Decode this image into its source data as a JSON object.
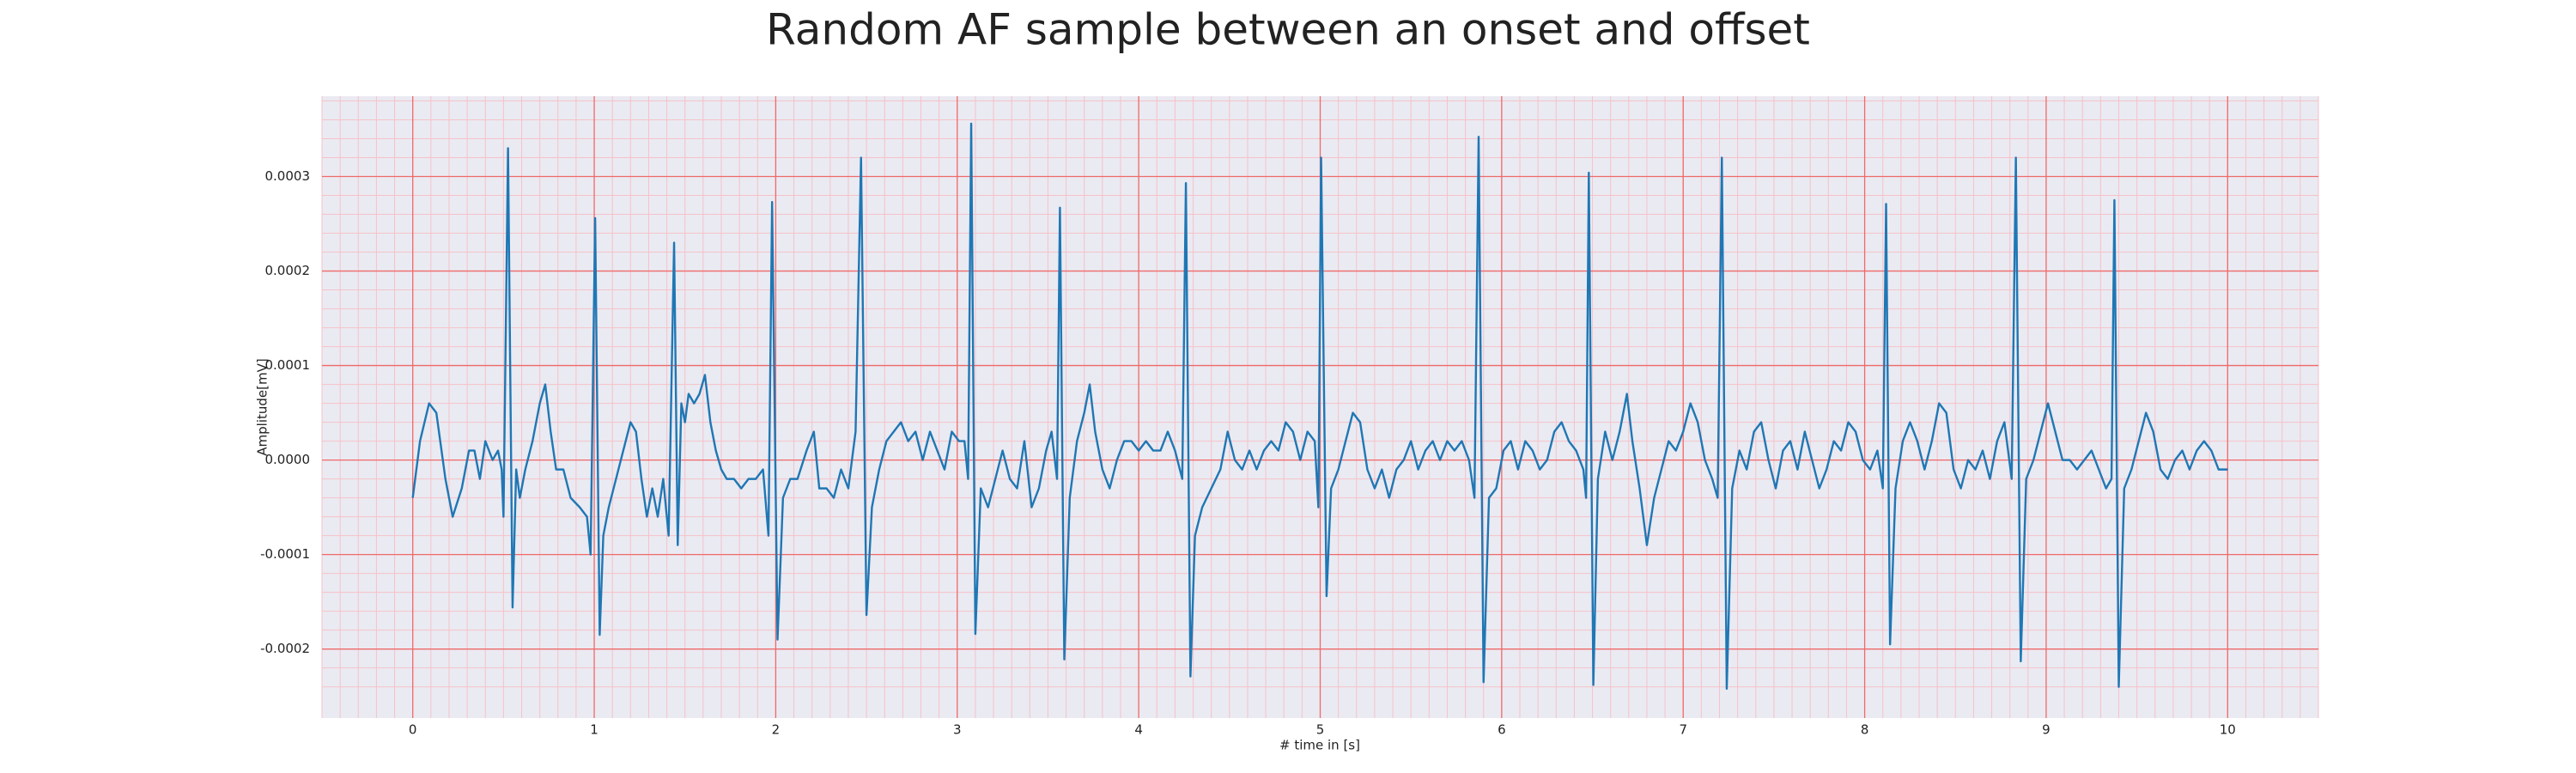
{
  "chart_data": {
    "type": "line",
    "title": "Random AF sample between an onset and offset",
    "xlabel": "# time in [s]",
    "ylabel": "Amplitude[mV]",
    "color": "#1f77b4",
    "grid": true,
    "minor_grid": true,
    "xlim": [
      -0.5,
      10.5
    ],
    "xticks": [
      0,
      1,
      2,
      3,
      4,
      5,
      6,
      7,
      8,
      9,
      10
    ],
    "ylim": [
      -0.000273,
      0.000385
    ],
    "yticks": [
      -0.0002,
      -0.0001,
      {
        "value": 0,
        "label": "0.0000"
      },
      0.0001,
      0.0002,
      0.0003
    ],
    "x": [
      0.0,
      0.04,
      0.09,
      0.13,
      0.18,
      0.22,
      0.27,
      0.31,
      0.34,
      0.37,
      0.4,
      0.44,
      0.47,
      0.49,
      0.5,
      0.525,
      0.55,
      0.57,
      0.59,
      0.62,
      0.66,
      0.7,
      0.73,
      0.76,
      0.79,
      0.83,
      0.87,
      0.92,
      0.96,
      0.98,
      1.005,
      1.03,
      1.05,
      1.08,
      1.12,
      1.16,
      1.2,
      1.23,
      1.26,
      1.29,
      1.32,
      1.35,
      1.38,
      1.41,
      1.44,
      1.46,
      1.48,
      1.5,
      1.52,
      1.55,
      1.58,
      1.61,
      1.64,
      1.67,
      1.7,
      1.73,
      1.77,
      1.81,
      1.85,
      1.89,
      1.93,
      1.96,
      1.98,
      2.01,
      2.04,
      2.08,
      2.12,
      2.17,
      2.21,
      2.24,
      2.28,
      2.32,
      2.36,
      2.4,
      2.44,
      2.47,
      2.5,
      2.53,
      2.57,
      2.61,
      2.65,
      2.69,
      2.73,
      2.77,
      2.81,
      2.85,
      2.89,
      2.93,
      2.97,
      3.01,
      3.04,
      3.06,
      3.077,
      3.1,
      3.13,
      3.17,
      3.21,
      3.25,
      3.29,
      3.33,
      3.37,
      3.41,
      3.45,
      3.49,
      3.52,
      3.55,
      3.566,
      3.59,
      3.62,
      3.66,
      3.7,
      3.73,
      3.76,
      3.8,
      3.84,
      3.88,
      3.92,
      3.96,
      4.0,
      4.04,
      4.08,
      4.12,
      4.16,
      4.2,
      4.24,
      4.26,
      4.285,
      4.31,
      4.35,
      4.4,
      4.45,
      4.49,
      4.53,
      4.57,
      4.61,
      4.65,
      4.69,
      4.73,
      4.77,
      4.81,
      4.85,
      4.89,
      4.93,
      4.97,
      4.99,
      5.005,
      5.035,
      5.06,
      5.1,
      5.14,
      5.18,
      5.22,
      5.26,
      5.3,
      5.34,
      5.38,
      5.42,
      5.46,
      5.5,
      5.54,
      5.58,
      5.62,
      5.66,
      5.7,
      5.74,
      5.78,
      5.82,
      5.85,
      5.873,
      5.9,
      5.93,
      5.97,
      6.01,
      6.05,
      6.09,
      6.13,
      6.17,
      6.21,
      6.25,
      6.29,
      6.33,
      6.37,
      6.41,
      6.45,
      6.465,
      6.48,
      6.505,
      6.53,
      6.57,
      6.61,
      6.65,
      6.69,
      6.72,
      6.76,
      6.8,
      6.84,
      6.88,
      6.92,
      6.96,
      7.0,
      7.04,
      7.08,
      7.12,
      7.16,
      7.19,
      7.213,
      7.24,
      7.27,
      7.31,
      7.35,
      7.39,
      7.43,
      7.47,
      7.51,
      7.55,
      7.59,
      7.63,
      7.67,
      7.71,
      7.75,
      7.79,
      7.83,
      7.87,
      7.91,
      7.95,
      7.99,
      8.03,
      8.07,
      8.1,
      8.118,
      8.14,
      8.17,
      8.21,
      8.25,
      8.29,
      8.33,
      8.37,
      8.41,
      8.45,
      8.49,
      8.53,
      8.57,
      8.61,
      8.65,
      8.69,
      8.73,
      8.77,
      8.81,
      8.833,
      8.86,
      8.89,
      8.93,
      8.97,
      9.01,
      9.05,
      9.09,
      9.13,
      9.17,
      9.21,
      9.25,
      9.29,
      9.33,
      9.36,
      9.376,
      9.4,
      9.43,
      9.47,
      9.51,
      9.55,
      9.59,
      9.63,
      9.67,
      9.71,
      9.75,
      9.79,
      9.83,
      9.87,
      9.91,
      9.95,
      10.0
    ],
    "values": [
      -4e-05,
      2e-05,
      6e-05,
      5e-05,
      -2e-05,
      -6e-05,
      -3e-05,
      1e-05,
      1e-05,
      -2e-05,
      2e-05,
      0.0,
      1e-05,
      -1e-05,
      -6e-05,
      0.00033,
      -0.000156,
      -1e-05,
      -4e-05,
      -1e-05,
      2e-05,
      6e-05,
      8e-05,
      3e-05,
      -1e-05,
      -1e-05,
      -4e-05,
      -5e-05,
      -6e-05,
      -0.0001,
      0.000256,
      -0.000185,
      -8e-05,
      -5e-05,
      -2e-05,
      1e-05,
      4e-05,
      3e-05,
      -2e-05,
      -6e-05,
      -3e-05,
      -6e-05,
      -2e-05,
      -8e-05,
      0.00023,
      -9e-05,
      6e-05,
      4e-05,
      7e-05,
      6e-05,
      7e-05,
      9e-05,
      4e-05,
      1e-05,
      -1e-05,
      -2e-05,
      -2e-05,
      -3e-05,
      -2e-05,
      -2e-05,
      -1e-05,
      -8e-05,
      0.000273,
      -0.00019,
      -4e-05,
      -2e-05,
      -2e-05,
      1e-05,
      3e-05,
      -3e-05,
      -3e-05,
      -4e-05,
      -1e-05,
      -3e-05,
      3e-05,
      0.00032,
      -0.000164,
      -5e-05,
      -1e-05,
      2e-05,
      3e-05,
      4e-05,
      2e-05,
      3e-05,
      0.0,
      3e-05,
      1e-05,
      -1e-05,
      3e-05,
      2e-05,
      2e-05,
      -2e-05,
      0.000356,
      -0.000184,
      -3e-05,
      -5e-05,
      -2e-05,
      1e-05,
      -2e-05,
      -3e-05,
      2e-05,
      -5e-05,
      -3e-05,
      1e-05,
      3e-05,
      -2e-05,
      0.000267,
      -0.000211,
      -4e-05,
      2e-05,
      5e-05,
      8e-05,
      3e-05,
      -1e-05,
      -3e-05,
      0.0,
      2e-05,
      2e-05,
      1e-05,
      2e-05,
      1e-05,
      1e-05,
      3e-05,
      1e-05,
      -2e-05,
      0.000293,
      -0.000229,
      -8e-05,
      -5e-05,
      -3e-05,
      -1e-05,
      3e-05,
      0.0,
      -1e-05,
      1e-05,
      -1e-05,
      1e-05,
      2e-05,
      1e-05,
      4e-05,
      3e-05,
      0.0,
      3e-05,
      2e-05,
      -5e-05,
      0.00032,
      -0.000144,
      -3e-05,
      -1e-05,
      2e-05,
      5e-05,
      4e-05,
      -1e-05,
      -3e-05,
      -1e-05,
      -4e-05,
      -1e-05,
      0.0,
      2e-05,
      -1e-05,
      1e-05,
      2e-05,
      0.0,
      2e-05,
      1e-05,
      2e-05,
      0.0,
      -4e-05,
      0.000342,
      -0.000235,
      -4e-05,
      -3e-05,
      1e-05,
      2e-05,
      -1e-05,
      2e-05,
      1e-05,
      -1e-05,
      0.0,
      3e-05,
      4e-05,
      2e-05,
      1e-05,
      -1e-05,
      -4e-05,
      0.000304,
      -0.000238,
      -2e-05,
      3e-05,
      0.0,
      3e-05,
      7e-05,
      2e-05,
      -3e-05,
      -9e-05,
      -4e-05,
      -1e-05,
      2e-05,
      1e-05,
      3e-05,
      6e-05,
      4e-05,
      0.0,
      -2e-05,
      -4e-05,
      0.00032,
      -0.000242,
      -3e-05,
      1e-05,
      -1e-05,
      3e-05,
      4e-05,
      0.0,
      -3e-05,
      1e-05,
      2e-05,
      -1e-05,
      3e-05,
      0.0,
      -3e-05,
      -1e-05,
      2e-05,
      1e-05,
      4e-05,
      3e-05,
      0.0,
      -1e-05,
      1e-05,
      -3e-05,
      0.000271,
      -0.000195,
      -3e-05,
      2e-05,
      4e-05,
      2e-05,
      -1e-05,
      2e-05,
      6e-05,
      5e-05,
      -1e-05,
      -3e-05,
      0.0,
      -1e-05,
      1e-05,
      -2e-05,
      2e-05,
      4e-05,
      -2e-05,
      0.00032,
      -0.000213,
      -2e-05,
      0.0,
      3e-05,
      6e-05,
      3e-05,
      0.0,
      0.0,
      -1e-05,
      0.0,
      1e-05,
      -1e-05,
      -3e-05,
      -2e-05,
      0.000275,
      -0.00024,
      -3e-05,
      -1e-05,
      2e-05,
      5e-05,
      3e-05,
      -1e-05,
      -2e-05,
      0.0,
      1e-05,
      -1e-05,
      1e-05,
      2e-05,
      1e-05,
      -1e-05,
      -1e-05
    ]
  }
}
